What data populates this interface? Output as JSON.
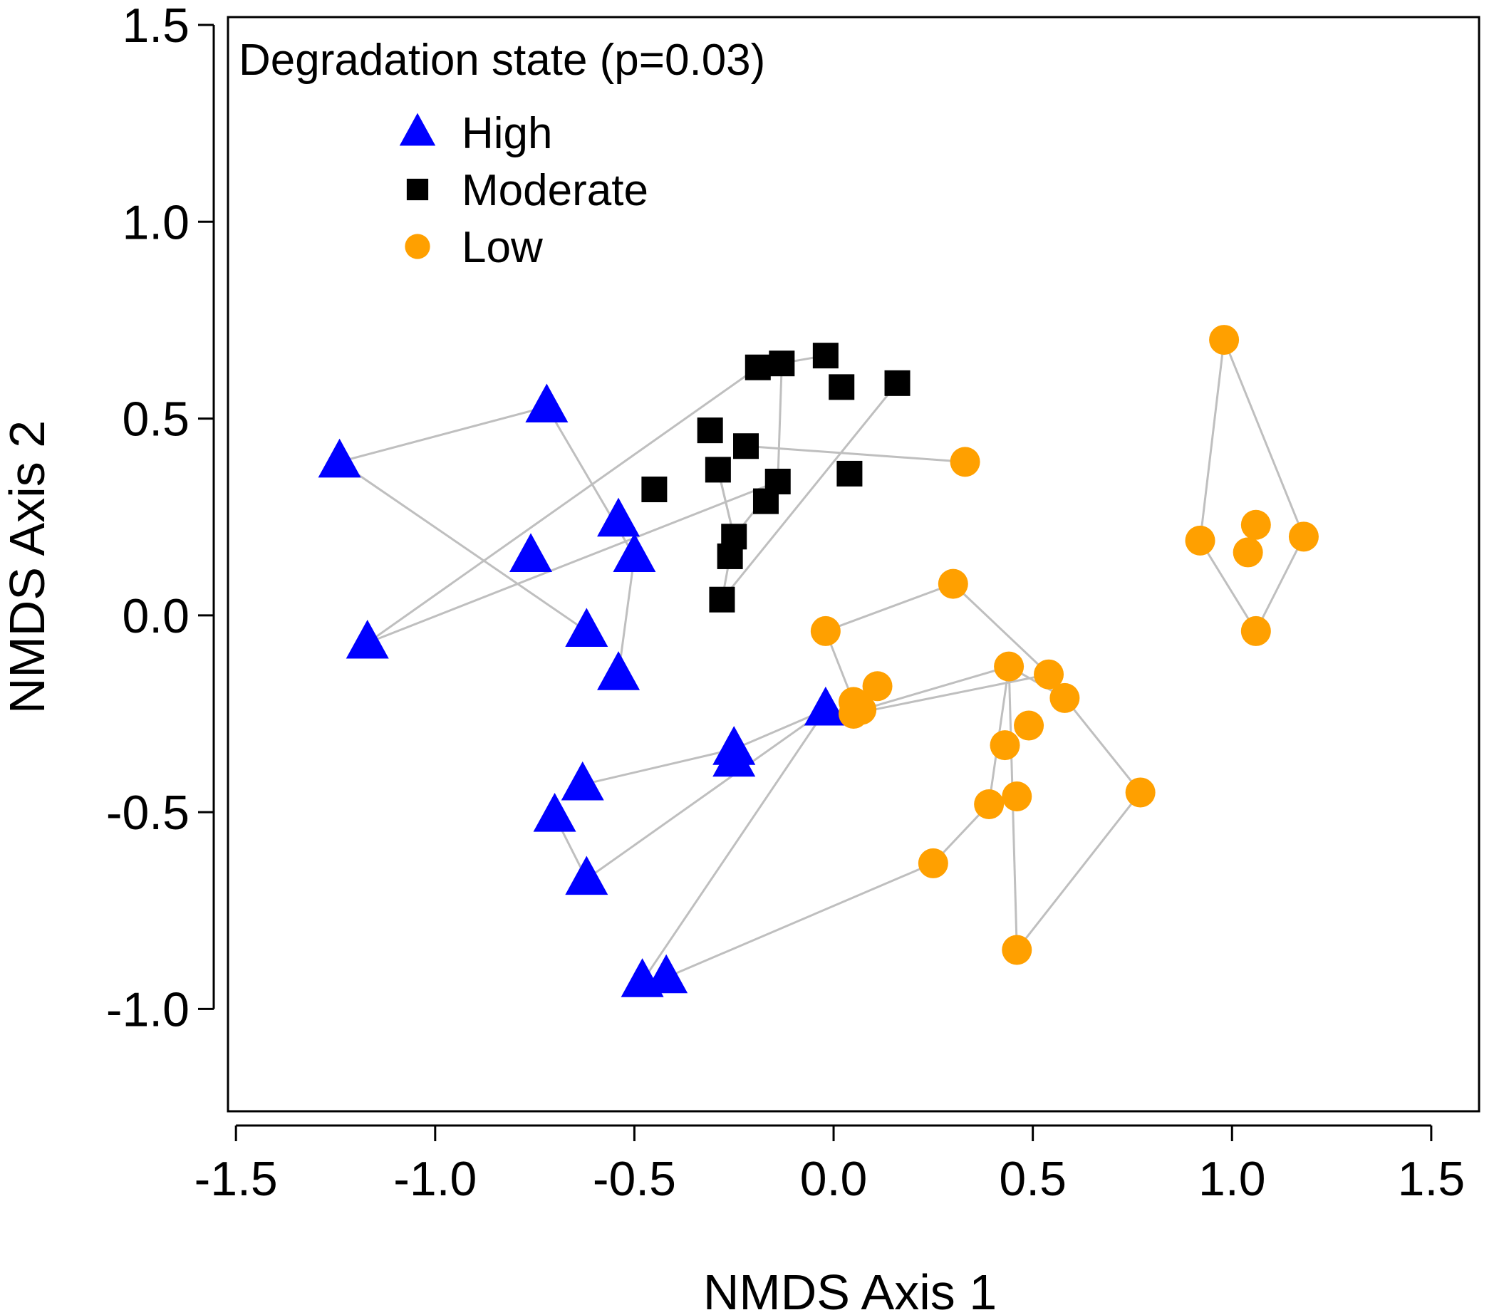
{
  "chart_data": {
    "type": "scatter",
    "title": "Degradation state (p=0.03)",
    "xlabel": "NMDS Axis 1",
    "ylabel": "NMDS Axis 2",
    "xlim": [
      -1.52,
      1.62
    ],
    "ylim": [
      -1.26,
      1.52
    ],
    "xticks": [
      -1.5,
      -1.0,
      -0.5,
      0.0,
      0.5,
      1.0,
      1.5
    ],
    "xtick_labels": [
      "-1.5",
      "-1.0",
      "-0.5",
      "0.0",
      "0.5",
      "1.0",
      "1.5"
    ],
    "yticks": [
      -1.0,
      -0.5,
      0.0,
      0.5,
      1.0,
      1.5
    ],
    "ytick_labels": [
      "-1.0",
      "-0.5",
      "0.0",
      "0.5",
      "1.0",
      "1.5"
    ],
    "legend_position": "top-left",
    "connector_color": "#bfbfbf",
    "series": [
      {
        "name": "High",
        "marker": "triangle",
        "color": "#0000ff",
        "points": [
          [
            -1.24,
            0.39
          ],
          [
            -0.72,
            0.53
          ],
          [
            -0.54,
            0.24
          ],
          [
            -0.76,
            0.15
          ],
          [
            -0.5,
            0.15
          ],
          [
            -1.17,
            -0.07
          ],
          [
            -0.62,
            -0.04
          ],
          [
            -0.54,
            -0.15
          ],
          [
            -0.02,
            -0.24
          ],
          [
            -0.25,
            -0.34
          ],
          [
            -0.25,
            -0.37
          ],
          [
            -0.63,
            -0.43
          ],
          [
            -0.7,
            -0.51
          ],
          [
            -0.62,
            -0.67
          ],
          [
            -0.48,
            -0.93
          ],
          [
            -0.42,
            -0.92
          ]
        ]
      },
      {
        "name": "Moderate",
        "marker": "square",
        "color": "#000000",
        "points": [
          [
            -0.19,
            0.63
          ],
          [
            -0.13,
            0.64
          ],
          [
            -0.02,
            0.66
          ],
          [
            0.02,
            0.58
          ],
          [
            0.16,
            0.59
          ],
          [
            -0.31,
            0.47
          ],
          [
            -0.22,
            0.43
          ],
          [
            -0.29,
            0.37
          ],
          [
            -0.45,
            0.32
          ],
          [
            -0.14,
            0.34
          ],
          [
            -0.17,
            0.29
          ],
          [
            0.04,
            0.36
          ],
          [
            -0.25,
            0.2
          ],
          [
            -0.26,
            0.15
          ],
          [
            -0.28,
            0.04
          ]
        ]
      },
      {
        "name": "Low",
        "marker": "circle",
        "color": "#ffa000",
        "points": [
          [
            0.33,
            0.39
          ],
          [
            0.3,
            0.08
          ],
          [
            -0.02,
            -0.04
          ],
          [
            0.44,
            -0.13
          ],
          [
            0.54,
            -0.15
          ],
          [
            0.58,
            -0.21
          ],
          [
            0.11,
            -0.18
          ],
          [
            0.05,
            -0.22
          ],
          [
            0.05,
            -0.25
          ],
          [
            0.07,
            -0.24
          ],
          [
            0.49,
            -0.28
          ],
          [
            0.43,
            -0.33
          ],
          [
            0.39,
            -0.48
          ],
          [
            0.46,
            -0.46
          ],
          [
            0.77,
            -0.45
          ],
          [
            0.25,
            -0.63
          ],
          [
            0.46,
            -0.85
          ],
          [
            0.98,
            0.7
          ],
          [
            0.92,
            0.19
          ],
          [
            1.06,
            0.23
          ],
          [
            1.04,
            0.16
          ],
          [
            1.18,
            0.2
          ],
          [
            1.06,
            -0.04
          ]
        ]
      }
    ],
    "connector_lines": [
      [
        [
          -1.24,
          0.39
        ],
        [
          -0.72,
          0.53
        ]
      ],
      [
        [
          -0.72,
          0.53
        ],
        [
          -0.5,
          0.15
        ]
      ],
      [
        [
          -0.5,
          0.15
        ],
        [
          -0.54,
          -0.15
        ]
      ],
      [
        [
          -1.24,
          0.39
        ],
        [
          -0.62,
          -0.04
        ]
      ],
      [
        [
          -1.17,
          -0.07
        ],
        [
          -0.19,
          0.63
        ]
      ],
      [
        [
          -0.19,
          0.63
        ],
        [
          -0.02,
          0.66
        ]
      ],
      [
        [
          -1.17,
          -0.07
        ],
        [
          -0.14,
          0.34
        ]
      ],
      [
        [
          -0.13,
          0.64
        ],
        [
          -0.14,
          0.34
        ]
      ],
      [
        [
          -0.28,
          0.04
        ],
        [
          0.16,
          0.59
        ]
      ],
      [
        [
          -0.22,
          0.43
        ],
        [
          0.33,
          0.39
        ]
      ],
      [
        [
          -0.29,
          0.37
        ],
        [
          -0.25,
          0.2
        ]
      ],
      [
        [
          -0.25,
          0.2
        ],
        [
          -0.14,
          0.34
        ]
      ],
      [
        [
          -0.25,
          0.2
        ],
        [
          -0.29,
          0.37
        ]
      ],
      [
        [
          -0.26,
          0.15
        ],
        [
          -0.28,
          0.04
        ]
      ],
      [
        [
          -0.25,
          0.2
        ],
        [
          -0.26,
          0.15
        ]
      ],
      [
        [
          0.3,
          0.08
        ],
        [
          -0.02,
          -0.04
        ]
      ],
      [
        [
          -0.02,
          -0.04
        ],
        [
          0.05,
          -0.22
        ]
      ],
      [
        [
          0.3,
          0.08
        ],
        [
          0.54,
          -0.15
        ]
      ],
      [
        [
          0.07,
          -0.24
        ],
        [
          0.44,
          -0.13
        ]
      ],
      [
        [
          0.44,
          -0.13
        ],
        [
          0.58,
          -0.21
        ]
      ],
      [
        [
          0.44,
          -0.13
        ],
        [
          0.39,
          -0.48
        ]
      ],
      [
        [
          0.44,
          -0.13
        ],
        [
          0.46,
          -0.85
        ]
      ],
      [
        [
          0.58,
          -0.21
        ],
        [
          0.77,
          -0.45
        ]
      ],
      [
        [
          0.77,
          -0.45
        ],
        [
          0.46,
          -0.85
        ]
      ],
      [
        [
          0.05,
          -0.25
        ],
        [
          0.54,
          -0.15
        ]
      ],
      [
        [
          0.39,
          -0.48
        ],
        [
          0.25,
          -0.63
        ]
      ],
      [
        [
          0.25,
          -0.63
        ],
        [
          -0.42,
          -0.92
        ]
      ],
      [
        [
          -0.02,
          -0.24
        ],
        [
          -0.25,
          -0.34
        ]
      ],
      [
        [
          -0.25,
          -0.34
        ],
        [
          -0.63,
          -0.43
        ]
      ],
      [
        [
          -0.02,
          -0.24
        ],
        [
          -0.62,
          -0.67
        ]
      ],
      [
        [
          -0.7,
          -0.51
        ],
        [
          -0.62,
          -0.67
        ]
      ],
      [
        [
          -0.48,
          -0.93
        ],
        [
          -0.02,
          -0.24
        ]
      ],
      [
        [
          0.98,
          0.7
        ],
        [
          0.92,
          0.19
        ]
      ],
      [
        [
          0.98,
          0.7
        ],
        [
          1.18,
          0.2
        ]
      ],
      [
        [
          0.92,
          0.19
        ],
        [
          1.06,
          -0.04
        ]
      ],
      [
        [
          1.18,
          0.2
        ],
        [
          1.06,
          -0.04
        ]
      ]
    ]
  }
}
